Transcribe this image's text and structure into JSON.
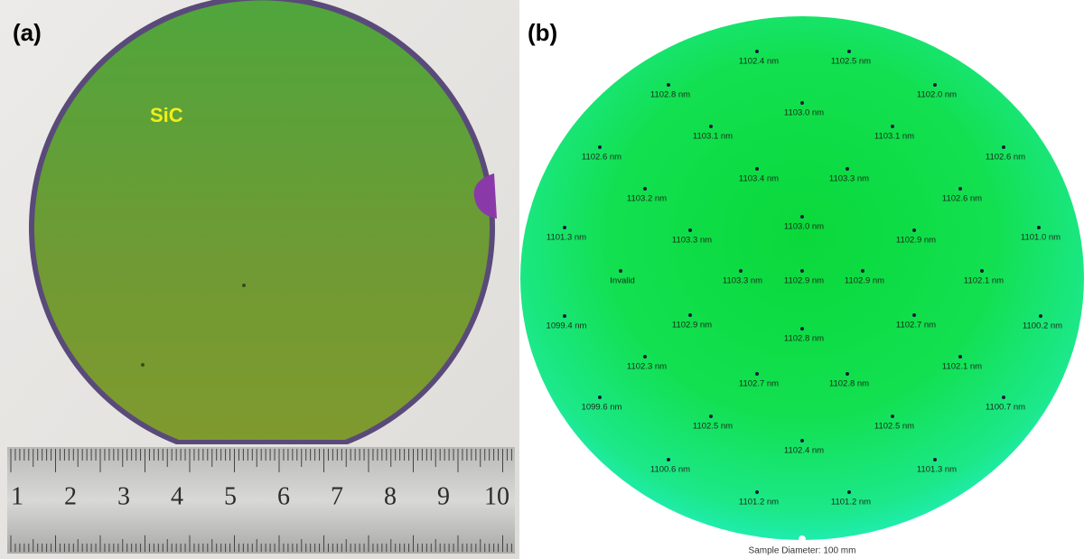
{
  "panels": [
    {
      "label": "(a)",
      "material": "SiC",
      "ruler_numbers": [
        1,
        2,
        3,
        4,
        5,
        6,
        7,
        8,
        9,
        10
      ]
    },
    {
      "label": "(b)",
      "measurements": [
        "1102.4 nm",
        "1102.5 nm",
        "1102.8 nm",
        "1102.0 nm",
        "1103.0 nm",
        "1103.1 nm",
        "1103.1 nm",
        "1102.6 nm",
        "1102.6 nm",
        "1103.4 nm",
        "1103.3 nm",
        "1103.2 nm",
        "1102.6 nm",
        "1103.0 nm",
        "1101.3 nm",
        "1103.3 nm",
        "1102.9 nm",
        "1101.0 nm",
        "Invalid",
        "1103.3 nm",
        "1102.9 nm",
        "1102.9 nm",
        "1102.1 nm",
        "1099.4 nm",
        "1102.9 nm",
        "1102.7 nm",
        "1100.2 nm",
        "1102.8 nm",
        "1102.3 nm",
        "1102.1 nm",
        "1102.7 nm",
        "1102.8 nm",
        "1099.6 nm",
        "1100.7 nm",
        "1102.5 nm",
        "1102.5 nm",
        "1102.4 nm",
        "1100.6 nm",
        "1101.3 nm",
        "1101.2 nm",
        "1101.2 nm"
      ],
      "footer": "Sample Diameter: 100 mm"
    }
  ]
}
